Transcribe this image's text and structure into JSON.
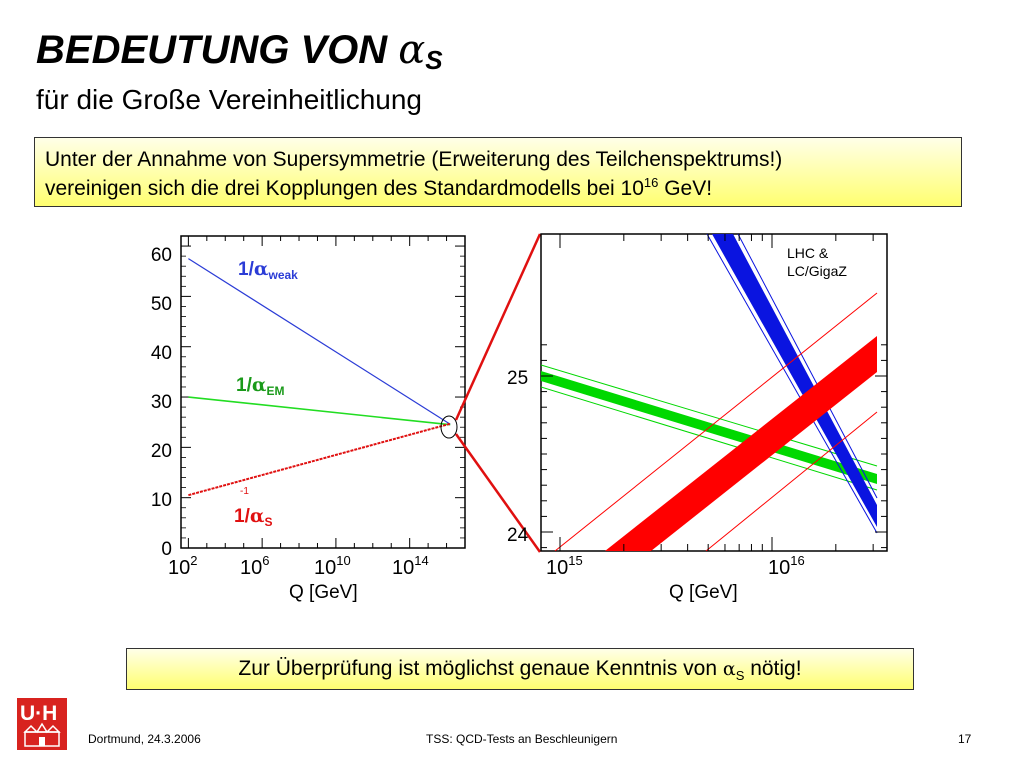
{
  "slide": {
    "title_text": "BEDEUTUNG VON ",
    "title_alpha": "α",
    "title_sub": "S",
    "subtitle": "für die Große Vereinheitlichung",
    "box1_line1": "Unter der Annahme von Supersymmetrie (Erweiterung des Teilchenspektrums!)",
    "box1_line2_pre": "vereinigen sich die drei Kopplungen des Standardmodells bei 10",
    "box1_exp": "16",
    "box1_line2_post": " GeV!",
    "box2_pre": "Zur Überprüfung ist möglichst genaue Kenntnis von ",
    "box2_alpha": "α",
    "box2_sub": "S",
    "box2_post": " nötig!"
  },
  "labels": {
    "weak_num": "1/",
    "weak_alpha": "α",
    "weak_sub": "weak",
    "em_num": "1/",
    "em_alpha": "α",
    "em_sub": "EM",
    "s_num": "1/",
    "s_alpha": "α",
    "s_sub": "S",
    "s_small": "-1"
  },
  "left_plot": {
    "y_ticks": [
      "60",
      "50",
      "40",
      "30",
      "20",
      "10",
      "0"
    ],
    "x_tick_bases": [
      "10",
      "10",
      "10",
      "10"
    ],
    "x_tick_exps": [
      "2",
      "6",
      "10",
      "14"
    ],
    "xlabel": "Q [GeV]"
  },
  "right_plot": {
    "y_ticks": [
      "25",
      "24"
    ],
    "x_tick_bases": [
      "10",
      "10"
    ],
    "x_tick_exps": [
      "15",
      "16"
    ],
    "xlabel": "Q [GeV]",
    "legend_line1": "LHC  &",
    "legend_line2": "LC/GigaZ"
  },
  "chart_data": [
    {
      "type": "line",
      "xlabel": "Q [GeV]",
      "x_scale": "log10",
      "x": [
        2,
        16.2
      ],
      "ylim": [
        0,
        62
      ],
      "series": [
        {
          "name": "1/αweak",
          "color": "#2b3cd6",
          "values": [
            57.5,
            24.6
          ]
        },
        {
          "name": "1/αEM",
          "color": "#22dd22",
          "values": [
            30.0,
            24.5
          ]
        },
        {
          "name": "1/αS",
          "color": "#e01010",
          "values": [
            10.5,
            24.7
          ]
        }
      ]
    },
    {
      "type": "line",
      "xlabel": "Q [GeV]",
      "x_scale": "log10",
      "ylim": [
        23.9,
        25.6
      ],
      "legend": [
        "LHC  &",
        "LC/GigaZ"
      ],
      "series": [
        {
          "name": "weak band",
          "color": "#0a14e0"
        },
        {
          "name": "EM band",
          "color": "#00d800"
        },
        {
          "name": "strong band",
          "color": "#ff0000"
        }
      ]
    }
  ],
  "footer": {
    "date": "Dortmund, 24.3.2006",
    "center": "TSS: QCD-Tests an Beschleunigern",
    "page": "17",
    "logo_text": "U·H"
  }
}
